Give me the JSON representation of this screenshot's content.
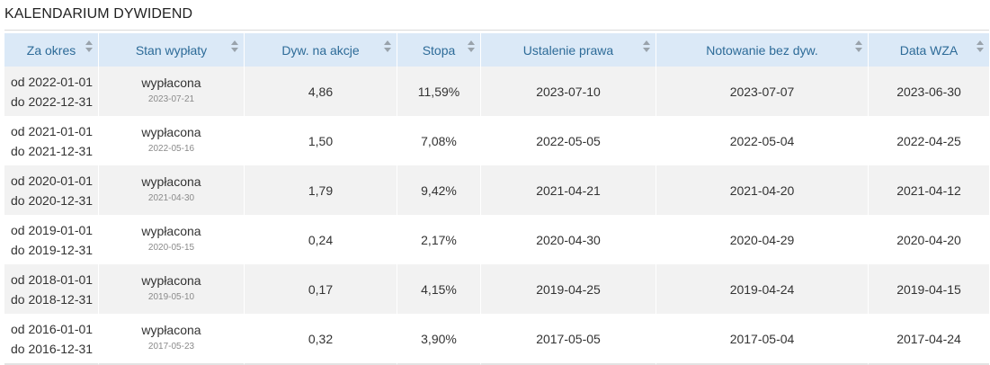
{
  "title": "KALENDARIUM DYWIDEND",
  "columns": [
    "Za okres",
    "Stan wypłaty",
    "Dyw. na akcje",
    "Stopa",
    "Ustalenie prawa",
    "Notowanie bez dyw.",
    "Data WZA"
  ],
  "rows": [
    {
      "period_from": "od 2022-01-01",
      "period_to": "do 2022-12-31",
      "status": "wypłacona",
      "status_date": "2023-07-21",
      "dividend": "4,86",
      "rate": "11,59%",
      "record_date": "2023-07-10",
      "ex_date": "2023-07-07",
      "agm_date": "2023-06-30"
    },
    {
      "period_from": "od 2021-01-01",
      "period_to": "do 2021-12-31",
      "status": "wypłacona",
      "status_date": "2022-05-16",
      "dividend": "1,50",
      "rate": "7,08%",
      "record_date": "2022-05-05",
      "ex_date": "2022-05-04",
      "agm_date": "2022-04-25"
    },
    {
      "period_from": "od 2020-01-01",
      "period_to": "do 2020-12-31",
      "status": "wypłacona",
      "status_date": "2021-04-30",
      "dividend": "1,79",
      "rate": "9,42%",
      "record_date": "2021-04-21",
      "ex_date": "2021-04-20",
      "agm_date": "2021-04-12"
    },
    {
      "period_from": "od 2019-01-01",
      "period_to": "do 2019-12-31",
      "status": "wypłacona",
      "status_date": "2020-05-15",
      "dividend": "0,24",
      "rate": "2,17%",
      "record_date": "2020-04-30",
      "ex_date": "2020-04-29",
      "agm_date": "2020-04-20"
    },
    {
      "period_from": "od 2018-01-01",
      "period_to": "do 2018-12-31",
      "status": "wypłacona",
      "status_date": "2019-05-10",
      "dividend": "0,17",
      "rate": "4,15%",
      "record_date": "2019-04-25",
      "ex_date": "2019-04-24",
      "agm_date": "2019-04-15"
    },
    {
      "period_from": "od 2016-01-01",
      "period_to": "do 2016-12-31",
      "status": "wypłacona",
      "status_date": "2017-05-23",
      "dividend": "0,32",
      "rate": "3,90%",
      "record_date": "2017-05-05",
      "ex_date": "2017-05-04",
      "agm_date": "2017-04-24"
    }
  ],
  "colors": {
    "header_bg": "#dbe9f7",
    "header_text": "#2d6b98",
    "row_alt_bg": "#f2f2f2",
    "sort_icon": "#9aa3ab"
  },
  "icons": {
    "sort": "sort-arrows-icon"
  }
}
